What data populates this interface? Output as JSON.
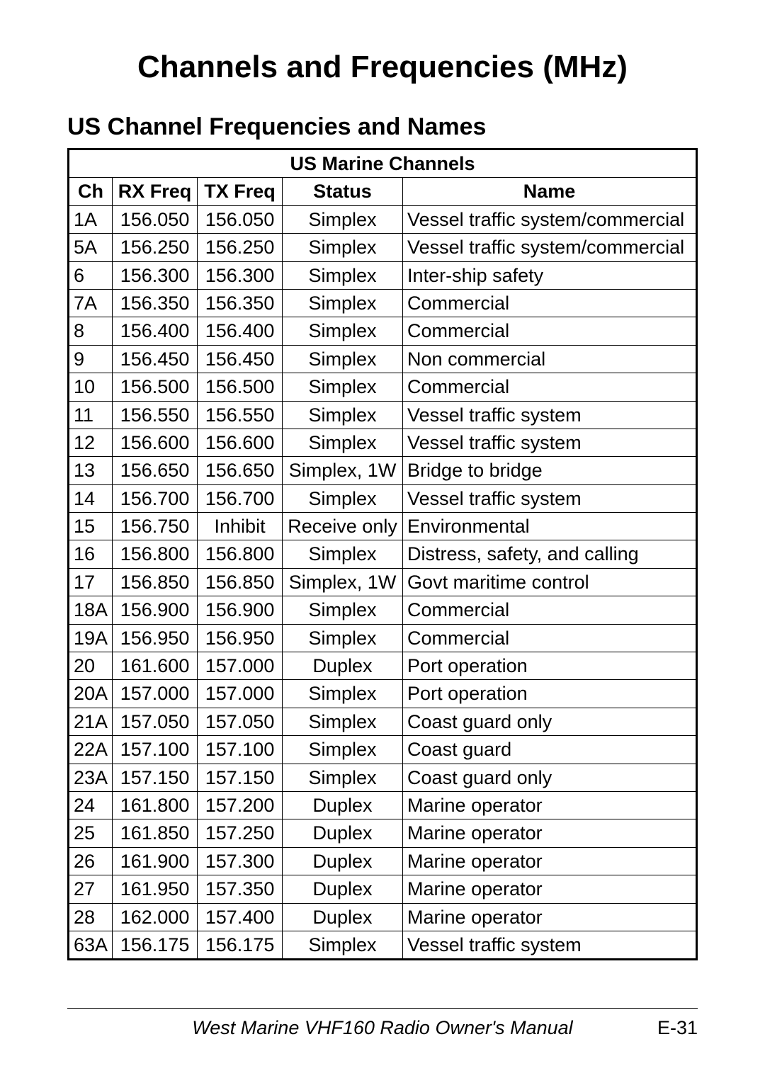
{
  "page": {
    "title": "Channels and Frequencies (MHz)",
    "subtitle": "US Channel Frequencies and Names",
    "footer_title": "West Marine VHF160 Radio Owner's Manual",
    "page_number": "E-31"
  },
  "table": {
    "caption": "US Marine Channels",
    "columns": [
      "Ch",
      "RX Freq",
      "TX Freq",
      "Status",
      "Name"
    ],
    "column_align": [
      "left",
      "center",
      "center",
      "center",
      "left"
    ],
    "border_color": "#000000",
    "outer_border_width": 3,
    "inner_border_width": 1,
    "font_size": 27,
    "rows": [
      [
        "1A",
        "156.050",
        "156.050",
        "Simplex",
        "Vessel traffic system/commercial"
      ],
      [
        "5A",
        "156.250",
        "156.250",
        "Simplex",
        "Vessel traffic system/commercial"
      ],
      [
        "6",
        "156.300",
        "156.300",
        "Simplex",
        "Inter-ship safety"
      ],
      [
        "7A",
        "156.350",
        "156.350",
        "Simplex",
        "Commercial"
      ],
      [
        "8",
        "156.400",
        "156.400",
        "Simplex",
        "Commercial"
      ],
      [
        "9",
        "156.450",
        "156.450",
        "Simplex",
        "Non commercial"
      ],
      [
        "10",
        "156.500",
        "156.500",
        "Simplex",
        "Commercial"
      ],
      [
        "11",
        "156.550",
        "156.550",
        "Simplex",
        "Vessel traffic system"
      ],
      [
        "12",
        "156.600",
        "156.600",
        "Simplex",
        "Vessel traffic system"
      ],
      [
        "13",
        "156.650",
        "156.650",
        "Simplex, 1W",
        "Bridge to bridge"
      ],
      [
        "14",
        "156.700",
        "156.700",
        "Simplex",
        "Vessel traffic system"
      ],
      [
        "15",
        "156.750",
        "Inhibit",
        "Receive only",
        "Environmental"
      ],
      [
        "16",
        "156.800",
        "156.800",
        "Simplex",
        "Distress, safety, and calling"
      ],
      [
        "17",
        "156.850",
        "156.850",
        "Simplex, 1W",
        "Govt maritime control"
      ],
      [
        "18A",
        "156.900",
        "156.900",
        "Simplex",
        "Commercial"
      ],
      [
        "19A",
        "156.950",
        "156.950",
        "Simplex",
        "Commercial"
      ],
      [
        "20",
        "161.600",
        "157.000",
        "Duplex",
        "Port operation"
      ],
      [
        "20A",
        "157.000",
        "157.000",
        "Simplex",
        "Port operation"
      ],
      [
        "21A",
        "157.050",
        "157.050",
        "Simplex",
        "Coast guard only"
      ],
      [
        "22A",
        "157.100",
        "157.100",
        "Simplex",
        "Coast guard"
      ],
      [
        "23A",
        "157.150",
        "157.150",
        "Simplex",
        "Coast guard only"
      ],
      [
        "24",
        "161.800",
        "157.200",
        "Duplex",
        "Marine operator"
      ],
      [
        "25",
        "161.850",
        "157.250",
        "Duplex",
        "Marine operator"
      ],
      [
        "26",
        "161.900",
        "157.300",
        "Duplex",
        "Marine operator"
      ],
      [
        "27",
        "161.950",
        "157.350",
        "Duplex",
        "Marine operator"
      ],
      [
        "28",
        "162.000",
        "157.400",
        "Duplex",
        "Marine operator"
      ],
      [
        "63A",
        "156.175",
        "156.175",
        "Simplex",
        "Vessel traffic system"
      ]
    ]
  }
}
